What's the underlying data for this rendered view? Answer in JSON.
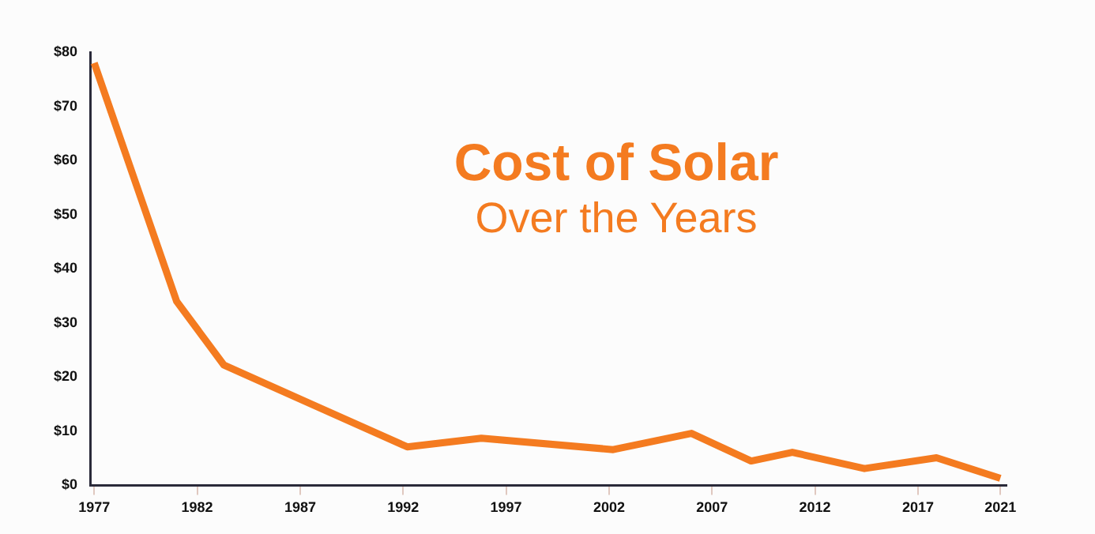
{
  "chart_data": {
    "type": "line",
    "title": "Cost of Solar",
    "subtitle": "Over the Years",
    "x": [
      1977,
      1981,
      1983.3,
      1992.2,
      1995.8,
      2002.2,
      2006,
      2008.9,
      2010.9,
      2014.4,
      2017.9,
      2021
    ],
    "series": [
      {
        "color": "#f47b20",
        "values": [
          78,
          34,
          22.2,
          7.1,
          8.7,
          6.6,
          9.6,
          4.5,
          6.1,
          3.1,
          5.1,
          1.3
        ]
      }
    ],
    "xlim": [
      1976.8,
      2021.3
    ],
    "xticks": [
      1977,
      1982,
      1987,
      1992,
      1997,
      2002,
      2007,
      2012,
      2017,
      2021
    ],
    "ylim": [
      0,
      80
    ],
    "yticks": [
      {
        "value": 0,
        "label": "$0"
      },
      {
        "value": 10,
        "label": "$10"
      },
      {
        "value": 20,
        "label": "$20"
      },
      {
        "value": 30,
        "label": "$30"
      },
      {
        "value": 40,
        "label": "$40"
      },
      {
        "value": 50,
        "label": "$50"
      },
      {
        "value": 60,
        "label": "$60"
      },
      {
        "value": 70,
        "label": "$70"
      },
      {
        "value": 80,
        "label": "$80"
      }
    ],
    "grid": false,
    "legend": false,
    "marker": "none",
    "line_style": "solid"
  }
}
